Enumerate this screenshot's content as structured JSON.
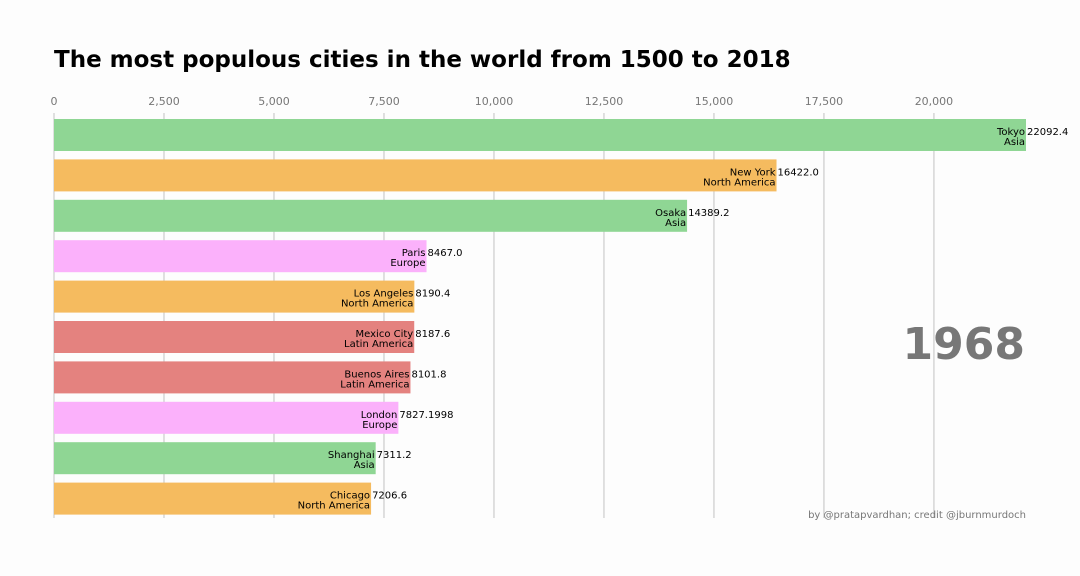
{
  "chart_data": {
    "type": "bar",
    "title": "The most populous cities in the world from 1500 to 2018",
    "year": "1968",
    "credit": "by @pratapvardhan; credit @jburnmurdoch",
    "xlim": [
      0,
      22092.4
    ],
    "xticks": [
      0,
      2500,
      5000,
      7500,
      10000,
      12500,
      15000,
      17500,
      20000
    ],
    "xtick_labels": [
      "0",
      "2,500",
      "5,000",
      "7,500",
      "10,000",
      "12,500",
      "15,000",
      "17,500",
      "20,000"
    ],
    "grid": true,
    "orientation": "horizontal",
    "group_colors": {
      "Asia": "#8fd694",
      "North America": "#f5bb5f",
      "Europe": "#fbb1fb",
      "Latin America": "#e4827f"
    },
    "bars": [
      {
        "city": "Tokyo",
        "group": "Asia",
        "value": 22092.4,
        "value_label": "22092.4"
      },
      {
        "city": "New York",
        "group": "North America",
        "value": 16422.0,
        "value_label": "16422.0"
      },
      {
        "city": "Osaka",
        "group": "Asia",
        "value": 14389.2,
        "value_label": "14389.2"
      },
      {
        "city": "Paris",
        "group": "Europe",
        "value": 8467.0,
        "value_label": "8467.0"
      },
      {
        "city": "Los Angeles",
        "group": "North America",
        "value": 8190.4,
        "value_label": "8190.4"
      },
      {
        "city": "Mexico City",
        "group": "Latin America",
        "value": 8187.6,
        "value_label": "8187.6"
      },
      {
        "city": "Buenos Aires",
        "group": "Latin America",
        "value": 8101.8,
        "value_label": "8101.8"
      },
      {
        "city": "London",
        "group": "Europe",
        "value": 7827.1998,
        "value_label": "7827.1998"
      },
      {
        "city": "Shanghai",
        "group": "Asia",
        "value": 7311.2,
        "value_label": "7311.2"
      },
      {
        "city": "Chicago",
        "group": "North America",
        "value": 7206.6,
        "value_label": "7206.6"
      }
    ]
  }
}
